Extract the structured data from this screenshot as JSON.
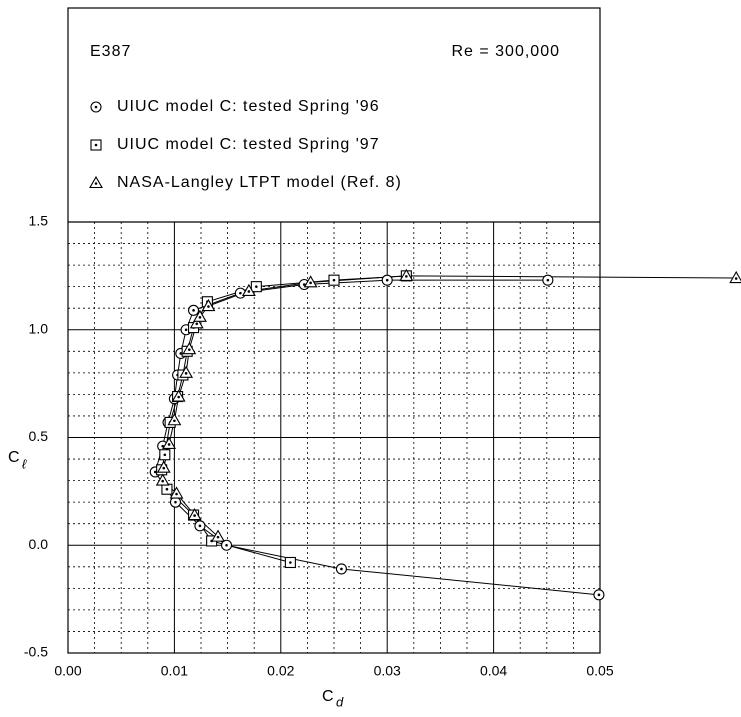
{
  "chart_data": {
    "type": "line",
    "airfoil": "E387",
    "reynolds": "Re = 300,000",
    "xlabel": {
      "main": "C",
      "sub": "d"
    },
    "ylabel": {
      "main": "C",
      "sub": "ℓ"
    },
    "xlim": [
      0,
      0.05
    ],
    "ylim": [
      -0.5,
      1.5
    ],
    "xticks": [
      {
        "value": 0,
        "label": "0.00"
      },
      {
        "value": 0.01,
        "label": "0.01"
      },
      {
        "value": 0.02,
        "label": "0.02"
      },
      {
        "value": 0.03,
        "label": "0.03"
      },
      {
        "value": 0.04,
        "label": "0.04"
      },
      {
        "value": 0.05,
        "label": "0.05"
      }
    ],
    "yticks": [
      1.5,
      {
        "value": 1,
        "label": "1.0"
      },
      0.5,
      {
        "value": 0,
        "label": "0.0"
      },
      -0.5
    ],
    "grid": true,
    "minor_divisions": {
      "x": 4,
      "y": 5
    },
    "series": [
      {
        "name": "UIUC model C: tested Spring '96",
        "marker": "circle",
        "color": "#000000",
        "x": [
          0.0499,
          0.0257,
          0.0149,
          0.0124,
          0.0101,
          0.0082,
          0.0089,
          0.0094,
          0.01,
          0.0103,
          0.0106,
          0.0111,
          0.0118,
          0.0162,
          0.0222,
          0.03,
          0.0451
        ],
        "values": [
          -0.23,
          -0.11,
          0.0,
          0.09,
          0.2,
          0.34,
          0.46,
          0.57,
          0.68,
          0.79,
          0.89,
          1.0,
          1.09,
          1.17,
          1.21,
          1.23,
          1.23
        ]
      },
      {
        "name": "UIUC model C: tested Spring '97",
        "marker": "square",
        "color": "#000000",
        "x": [
          0.0209,
          0.0135,
          0.0118,
          0.0093,
          0.0088,
          0.0091,
          0.0096,
          0.0103,
          0.0108,
          0.0112,
          0.0118,
          0.0131,
          0.0177,
          0.025,
          0.0318
        ],
        "values": [
          -0.08,
          0.02,
          0.14,
          0.26,
          0.35,
          0.42,
          0.57,
          0.69,
          0.79,
          0.9,
          1.01,
          1.13,
          1.2,
          1.23,
          1.25
        ]
      },
      {
        "name": "NASA-Langley LTPT model (Ref. 8)",
        "marker": "triangle",
        "color": "#000000",
        "x": [
          0.0141,
          0.0119,
          0.0102,
          0.0089,
          0.009,
          0.0095,
          0.01,
          0.0104,
          0.0111,
          0.0114,
          0.0121,
          0.0124,
          0.0132,
          0.017,
          0.0228,
          0.0318,
          0.0628
        ],
        "values": [
          0.04,
          0.14,
          0.24,
          0.3,
          0.36,
          0.47,
          0.58,
          0.69,
          0.8,
          0.91,
          1.03,
          1.06,
          1.11,
          1.18,
          1.22,
          1.25,
          1.24
        ]
      }
    ]
  }
}
